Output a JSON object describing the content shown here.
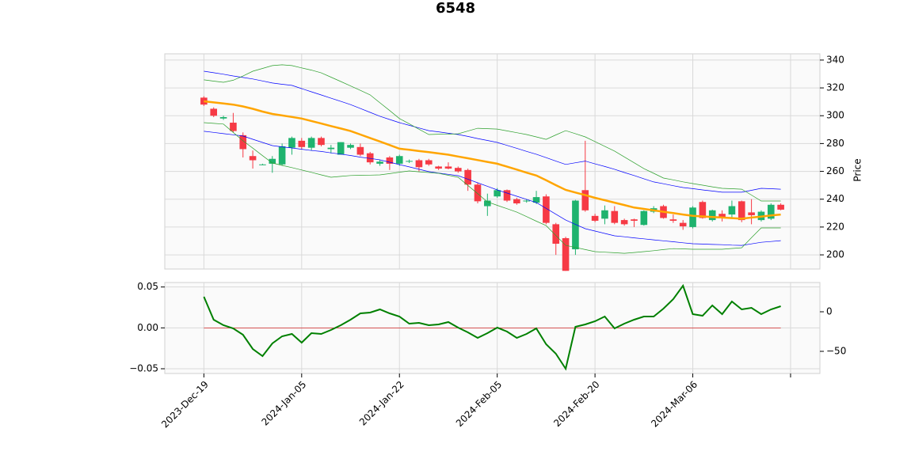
{
  "chart_data": [
    {
      "type": "candlestick",
      "title": "6548",
      "ylabel": "Price",
      "ylim": [
        189.8,
        344.5
      ],
      "yticks": [
        200,
        220,
        240,
        260,
        280,
        300,
        320,
        340
      ],
      "grid": true,
      "up_color": "#1fb36e",
      "down_color": "#f63a45",
      "open": [
        313,
        305,
        298,
        295,
        286,
        271,
        265,
        265.5,
        265,
        277,
        282,
        277,
        284,
        276,
        272,
        277,
        277.5,
        273,
        265.5,
        270,
        265.5,
        267,
        268,
        268,
        263.5,
        263.5,
        262.5,
        261,
        250.5,
        235,
        242,
        246.5,
        240,
        238.5,
        237.5,
        242,
        222,
        212,
        204,
        246.5,
        228,
        226,
        231.5,
        225,
        225.5,
        221.5,
        231,
        235,
        225.5,
        223,
        220,
        238,
        225,
        229.5,
        229,
        238.5,
        230.5,
        225,
        226,
        236
      ],
      "high": [
        314,
        306,
        300,
        302,
        288,
        275,
        265.5,
        271,
        280,
        285,
        284,
        285,
        285,
        279,
        281,
        280,
        280,
        274,
        268,
        271,
        272,
        268.5,
        269,
        269,
        264,
        266.5,
        263.5,
        262,
        252,
        244,
        248,
        247,
        241,
        240,
        246,
        243.5,
        223,
        213,
        239.5,
        282,
        229.5,
        235.5,
        235,
        226,
        226,
        232,
        235,
        236,
        229,
        225,
        235,
        239,
        232.5,
        232,
        239,
        239,
        240,
        232,
        237,
        237
      ],
      "low": [
        307,
        299,
        297,
        288,
        270,
        262,
        264.5,
        259,
        264,
        272,
        276,
        275,
        278,
        273,
        272,
        276,
        271,
        265,
        264,
        261,
        264,
        266,
        260,
        264,
        261,
        261.5,
        259,
        246,
        237,
        228,
        241,
        238,
        236,
        237.5,
        236.5,
        222,
        200,
        188.5,
        200,
        231,
        223.5,
        222,
        222,
        221,
        220,
        221,
        230,
        226,
        223,
        218,
        219,
        226,
        224,
        224,
        227,
        223.5,
        222,
        224,
        225,
        232
      ],
      "close": [
        308,
        300,
        299,
        289,
        276,
        268,
        265,
        269,
        278,
        284,
        277.5,
        284,
        279,
        277,
        281,
        279,
        272,
        266.5,
        267,
        265.5,
        271,
        267.5,
        263,
        265,
        262,
        262,
        260,
        250.5,
        238.5,
        239,
        246.5,
        239,
        237,
        239,
        241.5,
        223,
        208,
        188.5,
        239,
        232,
        224.5,
        232,
        223,
        222,
        224.5,
        231.5,
        233.5,
        226.5,
        224.5,
        220.5,
        234,
        226.5,
        232,
        226.5,
        235,
        225,
        228.5,
        231,
        236,
        232.5
      ],
      "series": [
        {
          "color": "#ffa500",
          "width": 2.5,
          "values": [
            310.4,
            309.6,
            308.8,
            308,
            306.7,
            305,
            303,
            301.3,
            300.2,
            299.1,
            298,
            296.2,
            294.4,
            292.6,
            290.8,
            289,
            286.5,
            284,
            281.5,
            278.9,
            276.3,
            275.5,
            274.6,
            273.8,
            272.9,
            272,
            270.7,
            269.4,
            268.1,
            266.8,
            265.5,
            263.4,
            261.3,
            259.1,
            257,
            253.6,
            250.1,
            246.7,
            244.8,
            242.9,
            241,
            239.3,
            237.5,
            235.8,
            234,
            233,
            232,
            231,
            230,
            229,
            228,
            227.6,
            227.2,
            226.8,
            226.4,
            226,
            226.8,
            227.5,
            228.3,
            229
          ]
        },
        {
          "color": "#0000ff",
          "width": 0.7,
          "values": [
            332,
            330.9,
            329.8,
            328.6,
            327.5,
            326.4,
            325,
            323.5,
            322.6,
            321.8,
            319.5,
            317.2,
            314.9,
            312.6,
            310.3,
            308,
            305.2,
            302.4,
            299.6,
            297.3,
            295,
            293.1,
            291.2,
            289.3,
            288.4,
            287.4,
            286.5,
            285.1,
            283.6,
            282.2,
            280.8,
            278.7,
            276.6,
            274.4,
            272.3,
            269.9,
            267.4,
            265,
            266.2,
            267.4,
            265.4,
            263.5,
            261.5,
            259.2,
            257,
            254.7,
            252.4,
            251.1,
            249.7,
            248.4,
            247.6,
            246.7,
            245.9,
            245,
            245,
            245,
            246.4,
            247.8,
            247.5,
            247.2
          ]
        },
        {
          "color": "#0000ff",
          "width": 0.7,
          "values": [
            288.8,
            288,
            287.1,
            286.3,
            285.4,
            283.1,
            280.8,
            278.5,
            277.6,
            276.8,
            275.9,
            275,
            274.3,
            273.3,
            272.4,
            271.4,
            270.2,
            269.3,
            268.3,
            266.6,
            264.9,
            263.2,
            261.5,
            259.8,
            258.8,
            257.9,
            256.9,
            254.4,
            251.8,
            249.3,
            246.7,
            244.4,
            242.1,
            239.9,
            237.6,
            233.4,
            229.2,
            225,
            221.9,
            218.8,
            217.1,
            215.4,
            213.7,
            213,
            212.2,
            211.5,
            210.8,
            210.1,
            209.4,
            208.7,
            208,
            207.8,
            207.5,
            207.3,
            207,
            206.8,
            207.9,
            209,
            209.6,
            210.2
          ]
        },
        {
          "color": "#2ca02c",
          "width": 0.7,
          "values": [
            325.8,
            324.9,
            324,
            325.5,
            328.5,
            332,
            334,
            336,
            336.6,
            336,
            334.4,
            332.8,
            330.8,
            327.7,
            324.6,
            321.4,
            318.2,
            315,
            309.3,
            303.7,
            298,
            294.2,
            290.3,
            286.5,
            286.7,
            286.8,
            287,
            289,
            291,
            290.7,
            290.4,
            289.1,
            287.8,
            286.5,
            284.8,
            283,
            286.2,
            289.3,
            287.1,
            284.8,
            281.4,
            278,
            274.6,
            270.4,
            266.2,
            262,
            258.6,
            255.2,
            253.9,
            252.5,
            251.2,
            250.1,
            248.9,
            247.8,
            247.5,
            247.2,
            243,
            238.7,
            238.7,
            238.7
          ]
        },
        {
          "color": "#2ca02c",
          "width": 0.7,
          "values": [
            295,
            294.5,
            294,
            288,
            282,
            276.7,
            271.3,
            266,
            264.3,
            262.7,
            261,
            259.3,
            257.5,
            255.8,
            256.4,
            257,
            257.2,
            257.3,
            257.5,
            258.4,
            259.4,
            260.3,
            259.7,
            259.2,
            258.6,
            257.2,
            255.8,
            249.9,
            244,
            238.1,
            235.6,
            233.2,
            230.7,
            227.5,
            224.2,
            221,
            213.9,
            206.8,
            205.3,
            203.8,
            202.3,
            201.9,
            201.5,
            201.1,
            201.7,
            202.3,
            203,
            203.8,
            204.5,
            204.3,
            204,
            204,
            204,
            204,
            204.6,
            205.1,
            212.3,
            219.4,
            219.4,
            219.4
          ]
        }
      ]
    },
    {
      "type": "line",
      "xlim": [
        -4,
        63
      ],
      "xticks": [
        {
          "value": 0,
          "label": "2023-Dec-19"
        },
        {
          "value": 10,
          "label": "2024-Jan-05"
        },
        {
          "value": 20,
          "label": "2024-Jan-22"
        },
        {
          "value": 30,
          "label": "2024-Feb-05"
        },
        {
          "value": 40,
          "label": "2024-Feb-20"
        },
        {
          "value": 50,
          "label": "2024-Mar-06"
        },
        60
      ],
      "ylim": [
        -0.0558,
        0.0555
      ],
      "yticks": [
        {
          "value": -0.05,
          "label": "−0.05"
        },
        {
          "value": 0,
          "label": "0.00"
        },
        0.05
      ],
      "y2lim": [
        -78,
        37
      ],
      "y2ticks": [
        {
          "value": -50,
          "label": "−50"
        },
        0
      ],
      "grid": true,
      "hline": {
        "value": 0,
        "color": "#d62728"
      },
      "series": [
        {
          "color": "#008000",
          "axis": "y2",
          "values": [
            19,
            -10,
            -17,
            -21,
            -29,
            -47,
            -56,
            -40,
            -31,
            -28,
            -39,
            -27,
            -28,
            -23,
            -17,
            -10,
            -2,
            -1,
            3,
            -2,
            -6,
            -15,
            -14,
            -17,
            -16,
            -13,
            -20,
            -26,
            -33,
            -27,
            -20,
            -25,
            -33,
            -28,
            -21,
            -41,
            -53,
            -72,
            -19,
            -16,
            -12,
            -6,
            -21,
            -15,
            -10,
            -6,
            -6,
            4,
            16,
            33,
            -3,
            -5,
            8,
            -3,
            13,
            3,
            5,
            -3,
            3,
            7
          ]
        }
      ]
    }
  ]
}
